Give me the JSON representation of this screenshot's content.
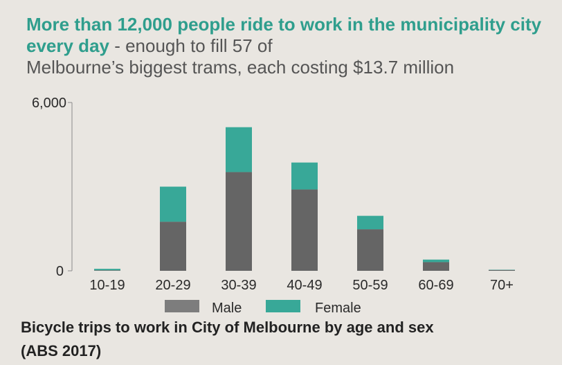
{
  "headline": {
    "strong": "More than 12,000 people ride to work in the municipality city every day",
    "rest": " - enough to fill 57 of",
    "rest2": "Melbourne’s biggest trams, each costing $13.7 million"
  },
  "caption": {
    "line1": "Bicycle trips to work in City of Melbourne by age and sex",
    "line2": "(ABS 2017)"
  },
  "colors": {
    "male": "#656565",
    "female": "#38a898",
    "legend_male": "#7d7d7d",
    "axis": "#8a8a8a"
  },
  "chart_data": {
    "type": "bar",
    "stacked": true,
    "categories": [
      "10-19",
      "20-29",
      "30-39",
      "40-49",
      "50-59",
      "60-69",
      "70+"
    ],
    "series": [
      {
        "name": "Male",
        "values": [
          20,
          1750,
          3520,
          2900,
          1480,
          310,
          30
        ]
      },
      {
        "name": "Female",
        "values": [
          50,
          1250,
          1600,
          960,
          480,
          90,
          10
        ]
      }
    ],
    "yticks": [
      "6,000",
      "0"
    ],
    "ylim": [
      0,
      6000
    ],
    "legend": "bottom"
  }
}
